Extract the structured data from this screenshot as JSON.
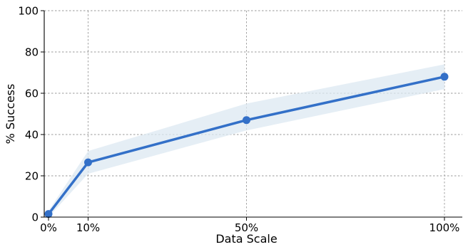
{
  "chart_data": {
    "type": "line",
    "title": "",
    "xlabel": "Data Scale",
    "ylabel": "% Success",
    "x": [
      0,
      10,
      50,
      100
    ],
    "x_tick_labels": [
      "0%",
      "10%",
      "50%",
      "100%"
    ],
    "y_ticks": [
      0,
      20,
      40,
      60,
      80,
      100
    ],
    "xlim": [
      0,
      100
    ],
    "ylim": [
      0,
      100
    ],
    "grid": true,
    "series": [
      {
        "values": [
          1.5,
          26.5,
          47,
          68
        ],
        "band_lower": [
          0,
          21,
          42,
          62
        ],
        "band_upper": [
          3,
          32,
          55,
          74
        ],
        "color": "#3370c8",
        "band_color": "#dce8f1"
      }
    ]
  }
}
